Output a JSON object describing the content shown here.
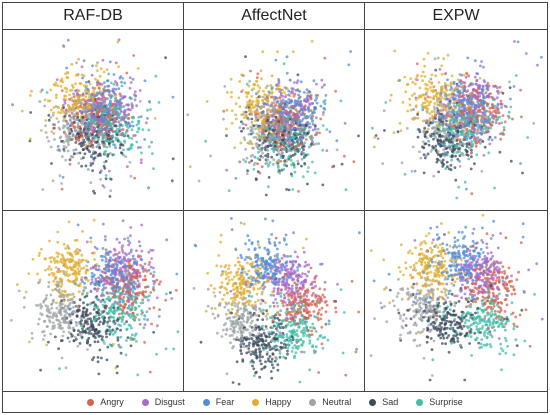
{
  "chart_data": {
    "type": "scatter",
    "columns": [
      "RAF-DB",
      "AffectNet",
      "EXPW"
    ],
    "legend": [
      {
        "label": "Angry",
        "color": "#d9624d"
      },
      {
        "label": "Disgust",
        "color": "#a56ad0"
      },
      {
        "label": "Fear",
        "color": "#4f8fd8"
      },
      {
        "label": "Happy",
        "color": "#e2ad2e"
      },
      {
        "label": "Neutral",
        "color": "#9ea4a6"
      },
      {
        "label": "Sad",
        "color": "#3a4b5c"
      },
      {
        "label": "Surprise",
        "color": "#3fbfa8"
      }
    ],
    "legend_position": "bottom",
    "grid": false,
    "axes_visible": false,
    "panels": [
      {
        "column": "RAF-DB",
        "row": 1,
        "spread": 0.36,
        "cluster_centers": {
          "Angry": [
            0.52,
            0.48
          ],
          "Disgust": [
            0.56,
            0.44
          ],
          "Fear": [
            0.54,
            0.46
          ],
          "Happy": [
            0.42,
            0.38
          ],
          "Neutral": [
            0.44,
            0.56
          ],
          "Sad": [
            0.5,
            0.6
          ],
          "Surprise": [
            0.62,
            0.52
          ]
        }
      },
      {
        "column": "AffectNet",
        "row": 1,
        "spread": 0.4,
        "cluster_centers": {
          "Angry": [
            0.56,
            0.52
          ],
          "Disgust": [
            0.6,
            0.48
          ],
          "Fear": [
            0.58,
            0.45
          ],
          "Happy": [
            0.44,
            0.42
          ],
          "Neutral": [
            0.46,
            0.56
          ],
          "Sad": [
            0.54,
            0.6
          ],
          "Surprise": [
            0.58,
            0.6
          ]
        }
      },
      {
        "column": "EXPW",
        "row": 1,
        "spread": 0.34,
        "cluster_centers": {
          "Angry": [
            0.6,
            0.46
          ],
          "Disgust": [
            0.58,
            0.42
          ],
          "Fear": [
            0.56,
            0.44
          ],
          "Happy": [
            0.4,
            0.38
          ],
          "Neutral": [
            0.46,
            0.54
          ],
          "Sad": [
            0.46,
            0.6
          ],
          "Surprise": [
            0.56,
            0.52
          ]
        }
      },
      {
        "column": "RAF-DB",
        "row": 2,
        "spread": 0.34,
        "cluster_centers": {
          "Angry": [
            0.7,
            0.42
          ],
          "Disgust": [
            0.66,
            0.34
          ],
          "Fear": [
            0.6,
            0.36
          ],
          "Happy": [
            0.36,
            0.32
          ],
          "Neutral": [
            0.32,
            0.56
          ],
          "Sad": [
            0.5,
            0.64
          ],
          "Surprise": [
            0.66,
            0.56
          ]
        }
      },
      {
        "column": "AffectNet",
        "row": 2,
        "spread": 0.38,
        "cluster_centers": {
          "Angry": [
            0.66,
            0.52
          ],
          "Disgust": [
            0.6,
            0.38
          ],
          "Fear": [
            0.46,
            0.3
          ],
          "Happy": [
            0.32,
            0.4
          ],
          "Neutral": [
            0.32,
            0.62
          ],
          "Sad": [
            0.44,
            0.72
          ],
          "Surprise": [
            0.62,
            0.66
          ]
        }
      },
      {
        "column": "EXPW",
        "row": 2,
        "spread": 0.36,
        "cluster_centers": {
          "Angry": [
            0.7,
            0.44
          ],
          "Disgust": [
            0.64,
            0.34
          ],
          "Fear": [
            0.54,
            0.28
          ],
          "Happy": [
            0.38,
            0.3
          ],
          "Neutral": [
            0.32,
            0.54
          ],
          "Sad": [
            0.46,
            0.62
          ],
          "Surprise": [
            0.66,
            0.62
          ]
        }
      }
    ]
  }
}
